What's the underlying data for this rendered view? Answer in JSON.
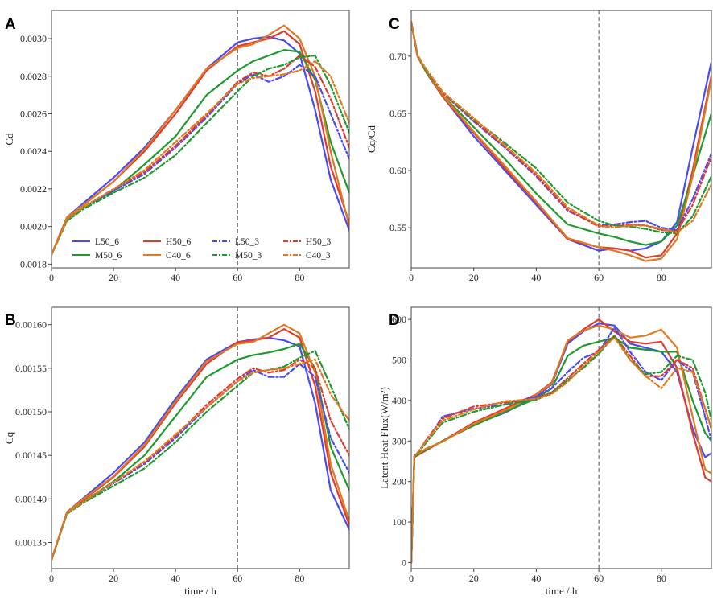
{
  "figure": {
    "legend": {
      "entries": [
        {
          "name": "L50_6",
          "color": "#4b4bf0",
          "dash": "solid"
        },
        {
          "name": "H50_6",
          "color": "#e03c2e",
          "dash": "solid"
        },
        {
          "name": "L50_3",
          "color": "#4b4bf0",
          "dash": "dashdot"
        },
        {
          "name": "H50_3",
          "color": "#e03c2e",
          "dash": "dashdot"
        },
        {
          "name": "M50_6",
          "color": "#1f9a2e",
          "dash": "solid"
        },
        {
          "name": "C40_6",
          "color": "#e07a22",
          "dash": "solid"
        },
        {
          "name": "M50_3",
          "color": "#1f9a2e",
          "dash": "dashdot"
        },
        {
          "name": "C40_3",
          "color": "#e07a22",
          "dash": "dashdot"
        }
      ]
    }
  },
  "chart_data": [
    {
      "letter": "A",
      "type": "line",
      "xlabel": "",
      "ylabel": "Cd",
      "xlim": [
        0,
        96
      ],
      "ylim": [
        0.00178,
        0.00315
      ],
      "xticks": [
        0,
        20,
        40,
        60,
        80
      ],
      "xtick_labels": [
        "0",
        "20",
        "40",
        "60",
        "80"
      ],
      "yticks": [
        0.0018,
        0.002,
        0.0022,
        0.0024,
        0.0026,
        0.0028,
        0.003
      ],
      "ytick_labels": [
        "0.0018",
        "0.0020",
        "0.0022",
        "0.0024",
        "0.0026",
        "0.0028",
        "0.0030"
      ],
      "vline_x": 60,
      "x": [
        0,
        5,
        10,
        20,
        30,
        40,
        50,
        60,
        65,
        70,
        75,
        80,
        85,
        90,
        96
      ],
      "series": [
        {
          "name": "L50_6",
          "values": [
            0.00185,
            0.00205,
            0.00212,
            0.00226,
            0.00242,
            0.00262,
            0.00284,
            0.00298,
            0.003,
            0.00301,
            0.00299,
            0.00292,
            0.00262,
            0.00225,
            0.00198
          ]
        },
        {
          "name": "H50_6",
          "values": [
            0.00185,
            0.00205,
            0.00211,
            0.00224,
            0.0024,
            0.0026,
            0.00283,
            0.00296,
            0.00298,
            0.003,
            0.00304,
            0.00297,
            0.00272,
            0.00232,
            0.00202
          ]
        },
        {
          "name": "M50_6",
          "values": [
            0.00185,
            0.00204,
            0.0021,
            0.00219,
            0.00233,
            0.00248,
            0.0027,
            0.00283,
            0.00288,
            0.00291,
            0.00294,
            0.00293,
            0.00278,
            0.00245,
            0.00218
          ]
        },
        {
          "name": "C40_6",
          "values": [
            0.00185,
            0.00205,
            0.00211,
            0.00224,
            0.00241,
            0.00262,
            0.00284,
            0.00295,
            0.00297,
            0.00302,
            0.00307,
            0.003,
            0.0028,
            0.0024,
            0.002
          ]
        },
        {
          "name": "L50_3",
          "values": [
            0.00185,
            0.00204,
            0.0021,
            0.00219,
            0.00228,
            0.00242,
            0.00258,
            0.00276,
            0.00281,
            0.00277,
            0.0028,
            0.00286,
            0.0028,
            0.0026,
            0.00236
          ]
        },
        {
          "name": "H50_3",
          "values": [
            0.00185,
            0.00204,
            0.0021,
            0.0022,
            0.00229,
            0.00243,
            0.00259,
            0.00277,
            0.00282,
            0.0028,
            0.00284,
            0.00291,
            0.00285,
            0.00268,
            0.00242
          ]
        },
        {
          "name": "M50_3",
          "values": [
            0.00185,
            0.00203,
            0.00209,
            0.00218,
            0.00226,
            0.00238,
            0.00255,
            0.00272,
            0.0028,
            0.00284,
            0.00286,
            0.0029,
            0.00291,
            0.00275,
            0.0025
          ]
        },
        {
          "name": "C40_3",
          "values": [
            0.00185,
            0.00204,
            0.0021,
            0.0022,
            0.0023,
            0.00245,
            0.0026,
            0.00276,
            0.00279,
            0.0028,
            0.00281,
            0.00283,
            0.00288,
            0.0028,
            0.00255
          ]
        }
      ]
    },
    {
      "letter": "C",
      "type": "line",
      "xlabel": "",
      "ylabel": "Cq/Cd",
      "xlim": [
        0,
        96
      ],
      "ylim": [
        0.515,
        0.74
      ],
      "xticks": [
        0,
        20,
        40,
        60,
        80
      ],
      "xtick_labels": [
        "0",
        "20",
        "40",
        "60",
        "80"
      ],
      "yticks": [
        0.55,
        0.6,
        0.65,
        0.7
      ],
      "ytick_labels": [
        "0.55",
        "0.60",
        "0.65",
        "0.70"
      ],
      "vline_x": 60,
      "x": [
        0,
        2,
        5,
        10,
        20,
        30,
        40,
        50,
        60,
        65,
        70,
        75,
        80,
        85,
        90,
        96
      ],
      "series": [
        {
          "name": "L50_6",
          "values": [
            0.73,
            0.7,
            0.685,
            0.665,
            0.63,
            0.6,
            0.57,
            0.54,
            0.53,
            0.532,
            0.53,
            0.532,
            0.538,
            0.555,
            0.62,
            0.695
          ]
        },
        {
          "name": "H50_6",
          "values": [
            0.73,
            0.7,
            0.685,
            0.665,
            0.633,
            0.602,
            0.572,
            0.54,
            0.533,
            0.532,
            0.53,
            0.524,
            0.526,
            0.545,
            0.6,
            0.683
          ]
        },
        {
          "name": "M50_6",
          "values": [
            0.73,
            0.7,
            0.685,
            0.666,
            0.638,
            0.61,
            0.58,
            0.553,
            0.545,
            0.542,
            0.538,
            0.535,
            0.538,
            0.552,
            0.595,
            0.65
          ]
        },
        {
          "name": "C40_6",
          "values": [
            0.73,
            0.7,
            0.686,
            0.666,
            0.634,
            0.604,
            0.573,
            0.541,
            0.533,
            0.53,
            0.526,
            0.521,
            0.523,
            0.54,
            0.595,
            0.68
          ]
        },
        {
          "name": "L50_3",
          "values": [
            0.73,
            0.701,
            0.687,
            0.668,
            0.643,
            0.62,
            0.595,
            0.565,
            0.552,
            0.553,
            0.555,
            0.556,
            0.55,
            0.548,
            0.575,
            0.615
          ]
        },
        {
          "name": "H50_3",
          "values": [
            0.73,
            0.701,
            0.687,
            0.668,
            0.644,
            0.621,
            0.596,
            0.566,
            0.551,
            0.552,
            0.553,
            0.552,
            0.548,
            0.547,
            0.57,
            0.612
          ]
        },
        {
          "name": "M50_3",
          "values": [
            0.73,
            0.701,
            0.687,
            0.669,
            0.645,
            0.624,
            0.602,
            0.572,
            0.556,
            0.552,
            0.551,
            0.549,
            0.546,
            0.545,
            0.56,
            0.595
          ]
        },
        {
          "name": "C40_3",
          "values": [
            0.73,
            0.701,
            0.688,
            0.669,
            0.646,
            0.622,
            0.598,
            0.568,
            0.552,
            0.55,
            0.552,
            0.552,
            0.549,
            0.546,
            0.556,
            0.588
          ]
        }
      ]
    },
    {
      "letter": "B",
      "type": "line",
      "xlabel": "time / h",
      "ylabel": "Cq",
      "xlim": [
        0,
        96
      ],
      "ylim": [
        0.00132,
        0.00162
      ],
      "xticks": [
        0,
        20,
        40,
        60,
        80
      ],
      "xtick_labels": [
        "0",
        "20",
        "40",
        "60",
        "80"
      ],
      "yticks": [
        0.00135,
        0.0014,
        0.00145,
        0.0015,
        0.00155,
        0.0016
      ],
      "ytick_labels": [
        "0.00135",
        "0.00140",
        "0.00145",
        "0.00150",
        "0.00155",
        "0.00160"
      ],
      "vline_x": 60,
      "x": [
        0,
        5,
        10,
        20,
        30,
        40,
        50,
        60,
        65,
        70,
        75,
        80,
        85,
        90,
        96
      ],
      "series": [
        {
          "name": "L50_6",
          "values": [
            0.00133,
            0.001385,
            0.0014,
            0.00143,
            0.001465,
            0.001515,
            0.00156,
            0.00158,
            0.001583,
            0.001585,
            0.001582,
            0.001575,
            0.00151,
            0.00141,
            0.001365
          ]
        },
        {
          "name": "H50_6",
          "values": [
            0.00133,
            0.001385,
            0.001398,
            0.001425,
            0.00146,
            0.00151,
            0.001555,
            0.00158,
            0.001582,
            0.001585,
            0.001595,
            0.001585,
            0.00153,
            0.00143,
            0.00137
          ]
        },
        {
          "name": "M50_6",
          "values": [
            0.00133,
            0.001384,
            0.001396,
            0.00142,
            0.00145,
            0.001495,
            0.00154,
            0.00156,
            0.001565,
            0.001568,
            0.001572,
            0.001578,
            0.00155,
            0.00146,
            0.00141
          ]
        },
        {
          "name": "C40_6",
          "values": [
            0.00133,
            0.001385,
            0.001399,
            0.001426,
            0.001462,
            0.001512,
            0.001558,
            0.001578,
            0.00158,
            0.00159,
            0.0016,
            0.00159,
            0.001545,
            0.00144,
            0.001375
          ]
        },
        {
          "name": "L50_3",
          "values": [
            0.00133,
            0.001384,
            0.001396,
            0.001418,
            0.00144,
            0.00147,
            0.001505,
            0.001535,
            0.001548,
            0.00154,
            0.00154,
            0.001555,
            0.00154,
            0.00147,
            0.00143
          ]
        },
        {
          "name": "H50_3",
          "values": [
            0.00133,
            0.001384,
            0.001396,
            0.001419,
            0.001442,
            0.001472,
            0.001508,
            0.001538,
            0.00155,
            0.001545,
            0.001548,
            0.00156,
            0.00155,
            0.00149,
            0.00145
          ]
        },
        {
          "name": "M50_3",
          "values": [
            0.00133,
            0.001383,
            0.001395,
            0.001415,
            0.001435,
            0.001465,
            0.0015,
            0.00153,
            0.001545,
            0.001548,
            0.001552,
            0.001562,
            0.00157,
            0.00153,
            0.00148
          ]
        },
        {
          "name": "C40_3",
          "values": [
            0.00133,
            0.001384,
            0.001396,
            0.001419,
            0.001443,
            0.001474,
            0.001505,
            0.001535,
            0.001545,
            0.001548,
            0.00155,
            0.001555,
            0.00156,
            0.00152,
            0.00149
          ]
        }
      ]
    },
    {
      "letter": "D",
      "type": "line",
      "xlabel": "time / h",
      "ylabel": "Latent Heat Flux(W/m²)",
      "xlim": [
        0,
        96
      ],
      "ylim": [
        -15,
        630
      ],
      "xticks": [
        0,
        20,
        40,
        60,
        80
      ],
      "xtick_labels": [
        "0",
        "20",
        "40",
        "60",
        "80"
      ],
      "yticks": [
        0,
        100,
        200,
        300,
        400,
        500,
        600
      ],
      "ytick_labels": [
        "0",
        "100",
        "200",
        "300",
        "400",
        "500",
        "600"
      ],
      "vline_x": 60,
      "x": [
        0,
        1,
        5,
        10,
        20,
        30,
        40,
        45,
        50,
        55,
        60,
        65,
        70,
        75,
        80,
        85,
        90,
        94,
        96
      ],
      "series": [
        {
          "name": "L50_6",
          "values": [
            0,
            265,
            280,
            300,
            340,
            370,
            410,
            440,
            540,
            570,
            590,
            585,
            540,
            530,
            520,
            470,
            330,
            260,
            270
          ]
        },
        {
          "name": "H50_6",
          "values": [
            0,
            260,
            278,
            300,
            345,
            380,
            415,
            445,
            545,
            575,
            600,
            570,
            545,
            540,
            545,
            480,
            320,
            210,
            200
          ]
        },
        {
          "name": "M50_6",
          "values": [
            0,
            262,
            280,
            300,
            338,
            372,
            405,
            430,
            510,
            535,
            545,
            555,
            530,
            525,
            520,
            520,
            400,
            320,
            300
          ]
        },
        {
          "name": "C40_6",
          "values": [
            0,
            263,
            282,
            298,
            342,
            376,
            414,
            442,
            548,
            572,
            585,
            575,
            555,
            560,
            575,
            530,
            360,
            230,
            220
          ]
        },
        {
          "name": "L50_3",
          "values": [
            0,
            260,
            300,
            360,
            380,
            390,
            410,
            430,
            470,
            505,
            520,
            580,
            520,
            470,
            450,
            500,
            470,
            360,
            300
          ]
        },
        {
          "name": "H50_3",
          "values": [
            0,
            258,
            305,
            355,
            385,
            395,
            405,
            420,
            455,
            490,
            525,
            560,
            510,
            460,
            460,
            500,
            480,
            380,
            330
          ]
        },
        {
          "name": "M50_3",
          "values": [
            0,
            259,
            298,
            345,
            372,
            390,
            402,
            418,
            450,
            480,
            515,
            560,
            500,
            465,
            470,
            510,
            500,
            420,
            350
          ]
        },
        {
          "name": "C40_3",
          "values": [
            0,
            261,
            302,
            350,
            378,
            398,
            404,
            416,
            445,
            485,
            520,
            555,
            500,
            460,
            430,
            480,
            470,
            380,
            330
          ]
        }
      ]
    }
  ]
}
